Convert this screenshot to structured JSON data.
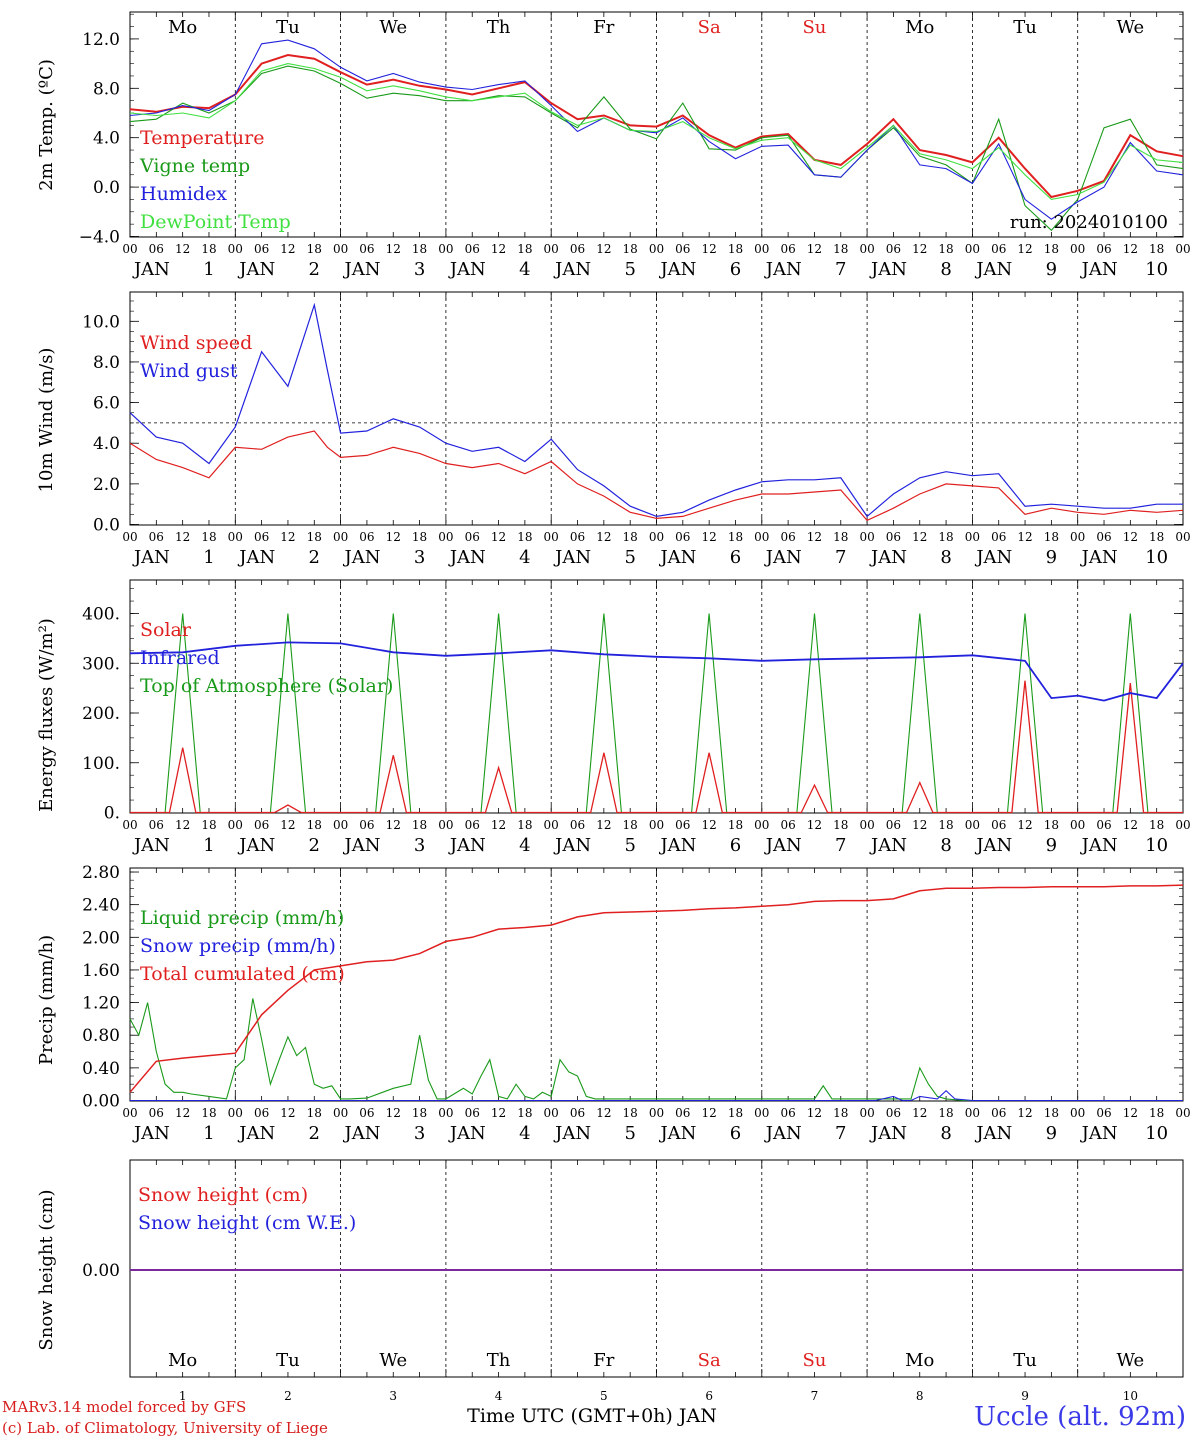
{
  "run_label": "run: 2024010100",
  "days": [
    {
      "name": "Mo",
      "date": "1",
      "color": "#000000"
    },
    {
      "name": "Tu",
      "date": "2",
      "color": "#000000"
    },
    {
      "name": "We",
      "date": "3",
      "color": "#000000"
    },
    {
      "name": "Th",
      "date": "4",
      "color": "#000000"
    },
    {
      "name": "Fr",
      "date": "5",
      "color": "#000000"
    },
    {
      "name": "Sa",
      "date": "6",
      "color": "#e02020"
    },
    {
      "name": "Su",
      "date": "7",
      "color": "#e02020"
    },
    {
      "name": "Mo",
      "date": "8",
      "color": "#000000"
    },
    {
      "name": "Tu",
      "date": "9",
      "color": "#000000"
    },
    {
      "name": "We",
      "date": "10",
      "color": "#000000"
    }
  ],
  "hour_labels": [
    "00",
    "06",
    "12",
    "18"
  ],
  "month_label": "JAN",
  "xlabel": "Time UTC (GMT+0h) JAN",
  "credits": [
    "MARv3.14 model forced by GFS",
    "(c) Lab. of Climatology, University of Liege"
  ],
  "station": "Uccle (alt. 92m)",
  "chart_data": [
    {
      "type": "line",
      "ylabel": "2m Temp. (ºC)",
      "ylim": [
        -4,
        14
      ],
      "yticks": [
        -4,
        0,
        4,
        8,
        12
      ],
      "ytick_labels": [
        "−4.0",
        "0.0",
        "4.0",
        "8.0",
        "12.0"
      ],
      "x_unit": "hours since JAN 1 00 UTC",
      "x": [
        0,
        6,
        12,
        18,
        24,
        30,
        36,
        42,
        48,
        54,
        60,
        66,
        72,
        78,
        84,
        90,
        96,
        102,
        108,
        114,
        120,
        126,
        132,
        138,
        144,
        150,
        156,
        162,
        168,
        174,
        180,
        186,
        192,
        198,
        204,
        210,
        216,
        222,
        228,
        234,
        240
      ],
      "series": [
        {
          "name": "Temperature",
          "color": "#e02020",
          "values": [
            6.3,
            6.1,
            6.5,
            6.4,
            7.5,
            10.0,
            10.7,
            10.4,
            9.3,
            8.3,
            8.7,
            8.2,
            7.9,
            7.5,
            8.0,
            8.5,
            6.8,
            5.5,
            5.8,
            5.0,
            4.9,
            5.8,
            4.2,
            3.2,
            4.1,
            4.3,
            2.2,
            1.8,
            3.5,
            5.5,
            3.0,
            2.6,
            2.0,
            4.0,
            1.5,
            -0.8,
            -0.3,
            0.5,
            4.2,
            2.9,
            2.5
          ]
        },
        {
          "name": "Vigne temp",
          "color": "#1a9a1a",
          "values": [
            5.3,
            5.5,
            6.8,
            6.0,
            7.0,
            9.2,
            9.8,
            9.4,
            8.4,
            7.2,
            7.6,
            7.4,
            7.0,
            7.0,
            7.4,
            7.3,
            6.0,
            4.8,
            7.3,
            4.7,
            3.9,
            6.8,
            3.1,
            3.0,
            4.0,
            4.2,
            1.0,
            0.8,
            3.0,
            4.8,
            2.5,
            1.8,
            0.3,
            5.5,
            -1.5,
            -3.5,
            -1.0,
            4.8,
            5.5,
            1.8,
            1.5
          ]
        },
        {
          "name": "Humidex",
          "color": "#2222dd",
          "values": [
            5.8,
            6.0,
            6.6,
            6.2,
            7.5,
            11.6,
            11.9,
            11.2,
            9.7,
            8.6,
            9.2,
            8.5,
            8.1,
            7.9,
            8.3,
            8.6,
            6.6,
            4.5,
            5.6,
            4.6,
            4.4,
            5.6,
            3.7,
            2.3,
            3.3,
            3.4,
            1.0,
            0.8,
            3.0,
            5.0,
            1.8,
            1.5,
            0.3,
            3.5,
            -1.0,
            -2.6,
            -1.2,
            0.0,
            3.6,
            1.3,
            1.0
          ]
        },
        {
          "name": "DewPoint Temp",
          "color": "#40e040",
          "values": [
            6.0,
            5.8,
            6.0,
            5.6,
            7.0,
            9.4,
            10.0,
            9.6,
            8.9,
            7.8,
            8.2,
            7.8,
            7.3,
            7.0,
            7.3,
            7.6,
            6.1,
            5.0,
            5.6,
            4.6,
            4.5,
            5.3,
            4.0,
            3.1,
            3.8,
            4.0,
            2.2,
            1.5,
            3.2,
            5.0,
            2.7,
            2.2,
            1.5,
            3.2,
            1.0,
            -1.0,
            -0.6,
            0.4,
            3.4,
            2.2,
            2.0
          ]
        }
      ]
    },
    {
      "type": "line",
      "ylabel": "10m Wind (m/s)",
      "ylim": [
        0,
        11.2
      ],
      "yticks": [
        0,
        2,
        4,
        6,
        8,
        10
      ],
      "ytick_labels": [
        "0.0",
        "2.0",
        "4.0",
        "6.0",
        "8.0",
        "10.0"
      ],
      "reference_line": 5.0,
      "x_unit": "hours since JAN 1 00 UTC",
      "x": [
        0,
        6,
        12,
        18,
        24,
        30,
        36,
        42,
        45,
        48,
        54,
        60,
        66,
        72,
        78,
        84,
        90,
        96,
        102,
        108,
        114,
        120,
        126,
        132,
        138,
        144,
        150,
        156,
        162,
        168,
        174,
        180,
        186,
        192,
        198,
        204,
        210,
        216,
        222,
        228,
        234,
        240
      ],
      "series": [
        {
          "name": "Wind speed",
          "color": "#e02020",
          "values": [
            4.0,
            3.2,
            2.8,
            2.3,
            3.8,
            3.7,
            4.3,
            4.6,
            3.8,
            3.3,
            3.4,
            3.8,
            3.5,
            3.0,
            2.8,
            3.0,
            2.5,
            3.1,
            2.0,
            1.4,
            0.6,
            0.3,
            0.4,
            0.8,
            1.2,
            1.5,
            1.5,
            1.6,
            1.7,
            0.2,
            0.8,
            1.5,
            2.0,
            1.9,
            1.8,
            0.5,
            0.8,
            0.6,
            0.5,
            0.7,
            0.6,
            0.7
          ]
        },
        {
          "name": "Wind gust",
          "color": "#2222dd",
          "values": [
            5.5,
            4.3,
            4.0,
            3.0,
            4.8,
            8.5,
            6.8,
            10.8,
            7.6,
            4.5,
            4.6,
            5.2,
            4.8,
            4.0,
            3.6,
            3.8,
            3.1,
            4.2,
            2.7,
            1.9,
            0.9,
            0.4,
            0.6,
            1.2,
            1.7,
            2.1,
            2.2,
            2.2,
            2.3,
            0.4,
            1.5,
            2.3,
            2.6,
            2.4,
            2.5,
            0.9,
            1.0,
            0.9,
            0.8,
            0.8,
            1.0,
            1.0
          ]
        }
      ]
    },
    {
      "type": "line",
      "ylabel": "Energy fluxes (W/m²)",
      "ylim": [
        0,
        450
      ],
      "yticks": [
        0,
        100,
        200,
        300,
        400
      ],
      "ytick_labels": [
        "0.",
        "100.",
        "200.",
        "300.",
        "400."
      ],
      "x_unit": "hours since JAN 1 00 UTC",
      "solar_peaks": [
        130,
        15,
        115,
        90,
        120,
        120,
        55,
        60,
        265,
        260
      ],
      "toa_solar_peak": 400,
      "toa_solar_hours": [
        8,
        16
      ],
      "infrared": {
        "x": [
          0,
          12,
          24,
          36,
          48,
          60,
          72,
          84,
          96,
          108,
          120,
          132,
          144,
          156,
          168,
          180,
          192,
          204,
          210,
          216,
          222,
          228,
          234,
          240
        ],
        "values": [
          320,
          322,
          335,
          342,
          340,
          322,
          315,
          320,
          326,
          318,
          313,
          310,
          305,
          308,
          310,
          312,
          316,
          305,
          230,
          235,
          225,
          240,
          230,
          300
        ]
      },
      "series": [
        {
          "name": "Solar",
          "color": "#e02020"
        },
        {
          "name": "Infrared",
          "color": "#2222dd"
        },
        {
          "name": "Top of Atmosphere (Solar)",
          "color": "#1a9a1a"
        }
      ]
    },
    {
      "type": "line",
      "ylabel": "Precip (mm/h)",
      "ylim": [
        0,
        2.8
      ],
      "yticks": [
        0,
        0.4,
        0.8,
        1.2,
        1.6,
        2.0,
        2.4,
        2.8
      ],
      "ytick_labels": [
        "0.00",
        "0.40",
        "0.80",
        "1.20",
        "1.60",
        "2.00",
        "2.40",
        "2.80"
      ],
      "x_unit": "hours since JAN 1 00 UTC",
      "liquid": {
        "x": [
          0,
          2,
          4,
          6,
          8,
          10,
          12,
          14,
          18,
          22,
          24,
          26,
          28,
          30,
          32,
          34,
          36,
          38,
          40,
          42,
          44,
          46,
          48,
          50,
          54,
          60,
          64,
          66,
          68,
          70,
          72,
          76,
          78,
          80,
          82,
          84,
          86,
          88,
          90,
          92,
          94,
          96,
          98,
          100,
          102,
          104,
          106,
          110,
          120,
          150,
          156,
          158,
          160,
          170,
          178,
          180,
          182,
          184,
          186,
          190,
          240
        ],
        "values": [
          1.0,
          0.8,
          1.2,
          0.6,
          0.2,
          0.1,
          0.1,
          0.08,
          0.05,
          0.02,
          0.4,
          0.5,
          1.25,
          0.75,
          0.2,
          0.5,
          0.78,
          0.55,
          0.65,
          0.2,
          0.15,
          0.18,
          0.02,
          0.02,
          0.03,
          0.15,
          0.2,
          0.8,
          0.25,
          0.02,
          0.02,
          0.15,
          0.08,
          0.3,
          0.5,
          0.05,
          0.02,
          0.2,
          0.05,
          0.02,
          0.1,
          0.05,
          0.5,
          0.35,
          0.3,
          0.05,
          0.02,
          0.02,
          0.02,
          0.02,
          0.02,
          0.18,
          0.02,
          0.02,
          0.02,
          0.4,
          0.2,
          0.05,
          0.02,
          0.0,
          0.0
        ]
      },
      "snow": {
        "x": [
          0,
          170,
          174,
          176,
          178,
          180,
          184,
          186,
          188,
          192,
          240
        ],
        "values": [
          0.0,
          0.0,
          0.05,
          0.0,
          0.0,
          0.05,
          0.02,
          0.12,
          0.02,
          0.0,
          0.0
        ]
      },
      "cumulated": {
        "x": [
          0,
          6,
          12,
          18,
          24,
          30,
          36,
          42,
          48,
          54,
          60,
          66,
          72,
          78,
          84,
          90,
          96,
          102,
          108,
          114,
          120,
          126,
          132,
          138,
          144,
          150,
          156,
          162,
          168,
          174,
          180,
          186,
          192,
          198,
          204,
          210,
          216,
          222,
          228,
          234,
          240
        ],
        "values": [
          0.1,
          0.48,
          0.52,
          0.55,
          0.58,
          1.05,
          1.35,
          1.6,
          1.65,
          1.7,
          1.72,
          1.8,
          1.95,
          2.0,
          2.1,
          2.12,
          2.15,
          2.25,
          2.3,
          2.31,
          2.32,
          2.33,
          2.35,
          2.36,
          2.38,
          2.4,
          2.44,
          2.45,
          2.45,
          2.47,
          2.57,
          2.6,
          2.6,
          2.61,
          2.61,
          2.62,
          2.62,
          2.62,
          2.63,
          2.63,
          2.64
        ]
      },
      "series": [
        {
          "name": "Liquid precip (mm/h)",
          "color": "#1a9a1a"
        },
        {
          "name": "Snow precip (mm/h)",
          "color": "#2222dd"
        },
        {
          "name": "Total cumulated (cm)",
          "color": "#e02020"
        }
      ]
    },
    {
      "type": "line",
      "ylabel": "Snow height (cm)",
      "ytick_labels": [
        "0.00"
      ],
      "x_unit": "hours since JAN 1 00 UTC",
      "x": [
        0,
        240
      ],
      "values": [
        0.0,
        0.0
      ],
      "series": [
        {
          "name": "Snow height (cm)",
          "color": "#e02020"
        },
        {
          "name": "Snow height (cm W.E.)",
          "color": "#2222dd"
        }
      ]
    }
  ]
}
